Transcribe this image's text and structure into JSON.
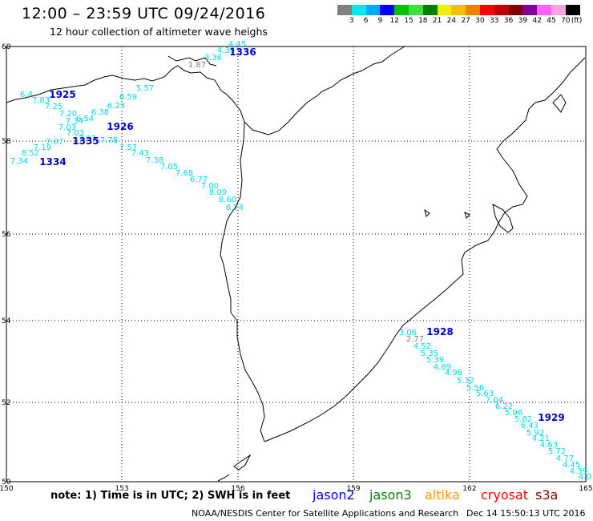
{
  "header": {
    "title": "12:00 – 23:59 UTC 09/24/2016",
    "subtitle": "12 hour collection of altimeter wave heighs"
  },
  "legend": {
    "swatches": [
      "#808080",
      "#00e8e8",
      "#00a8ff",
      "#0000ff",
      "#00c000",
      "#40e040",
      "#008000",
      "#f0f000",
      "#f0c000",
      "#f08000",
      "#ff0000",
      "#c00000",
      "#800000",
      "#8000a0",
      "#ff60ff",
      "#ffa0e0",
      "#000000"
    ],
    "labels": [
      "3",
      "6",
      "9",
      "12",
      "15",
      "18",
      "21",
      "24",
      "27",
      "30",
      "33",
      "36",
      "39",
      "42",
      "45",
      "70",
      "(ft)"
    ]
  },
  "axes": {
    "lon_ticks": [
      "150",
      "153",
      "156",
      "159",
      "162",
      "165"
    ],
    "lat_ticks": [
      "60",
      "58",
      "56",
      "54",
      "52",
      "50"
    ]
  },
  "tracks": [
    {
      "pass": "1336",
      "values": [
        "4.45",
        "4.30",
        "3.36",
        "1.87"
      ]
    },
    {
      "pass": "1925",
      "values": [
        "6.4",
        "7.83",
        "7.25",
        "7.20",
        "6.54",
        "6.38",
        "6.23",
        "6.59",
        "5.57"
      ]
    },
    {
      "pass": "1926",
      "values": [
        "7.34",
        "7.03",
        "7.03",
        "7.07",
        "7.78",
        "7.57",
        "7.43",
        "7.38",
        "7.05",
        "7.68",
        "6.77",
        "7.00",
        "8.09",
        "8.60",
        "8.74"
      ]
    },
    {
      "pass": "1335",
      "values": [
        "7.07",
        "7.19",
        "8.52"
      ]
    },
    {
      "pass": "1334",
      "values": [
        "7.34"
      ]
    },
    {
      "pass": "1928",
      "values": [
        "3.06",
        "2.77",
        "4.52",
        "5.35",
        "5.39",
        "4.89",
        "4.96",
        "5.32",
        "5.56",
        "5.63",
        "7.04",
        "6.22",
        "5.96",
        "5.82",
        "6.43",
        "5.92"
      ]
    },
    {
      "pass": "1929",
      "values": [
        "4.21",
        "4.63",
        "5.72",
        "4.77",
        "4.45",
        "4.39",
        "4.0"
      ]
    }
  ],
  "bottom": {
    "note": "note: 1) Time is in UTC; 2) SWH is in feet",
    "satellites": [
      {
        "name": "jason2",
        "color": "#0000ff"
      },
      {
        "name": "jason3",
        "color": "#008000"
      },
      {
        "name": "altika",
        "color": "#ff9900"
      },
      {
        "name": "cryosat",
        "color": "#ff0000"
      },
      {
        "name": "s3a",
        "color": "#8b0000"
      }
    ],
    "footer": "NOAA/NESDIS Center for Satellite Applications and Research",
    "footer_date": "Dec 14 15:50:13 UTC 2016"
  }
}
